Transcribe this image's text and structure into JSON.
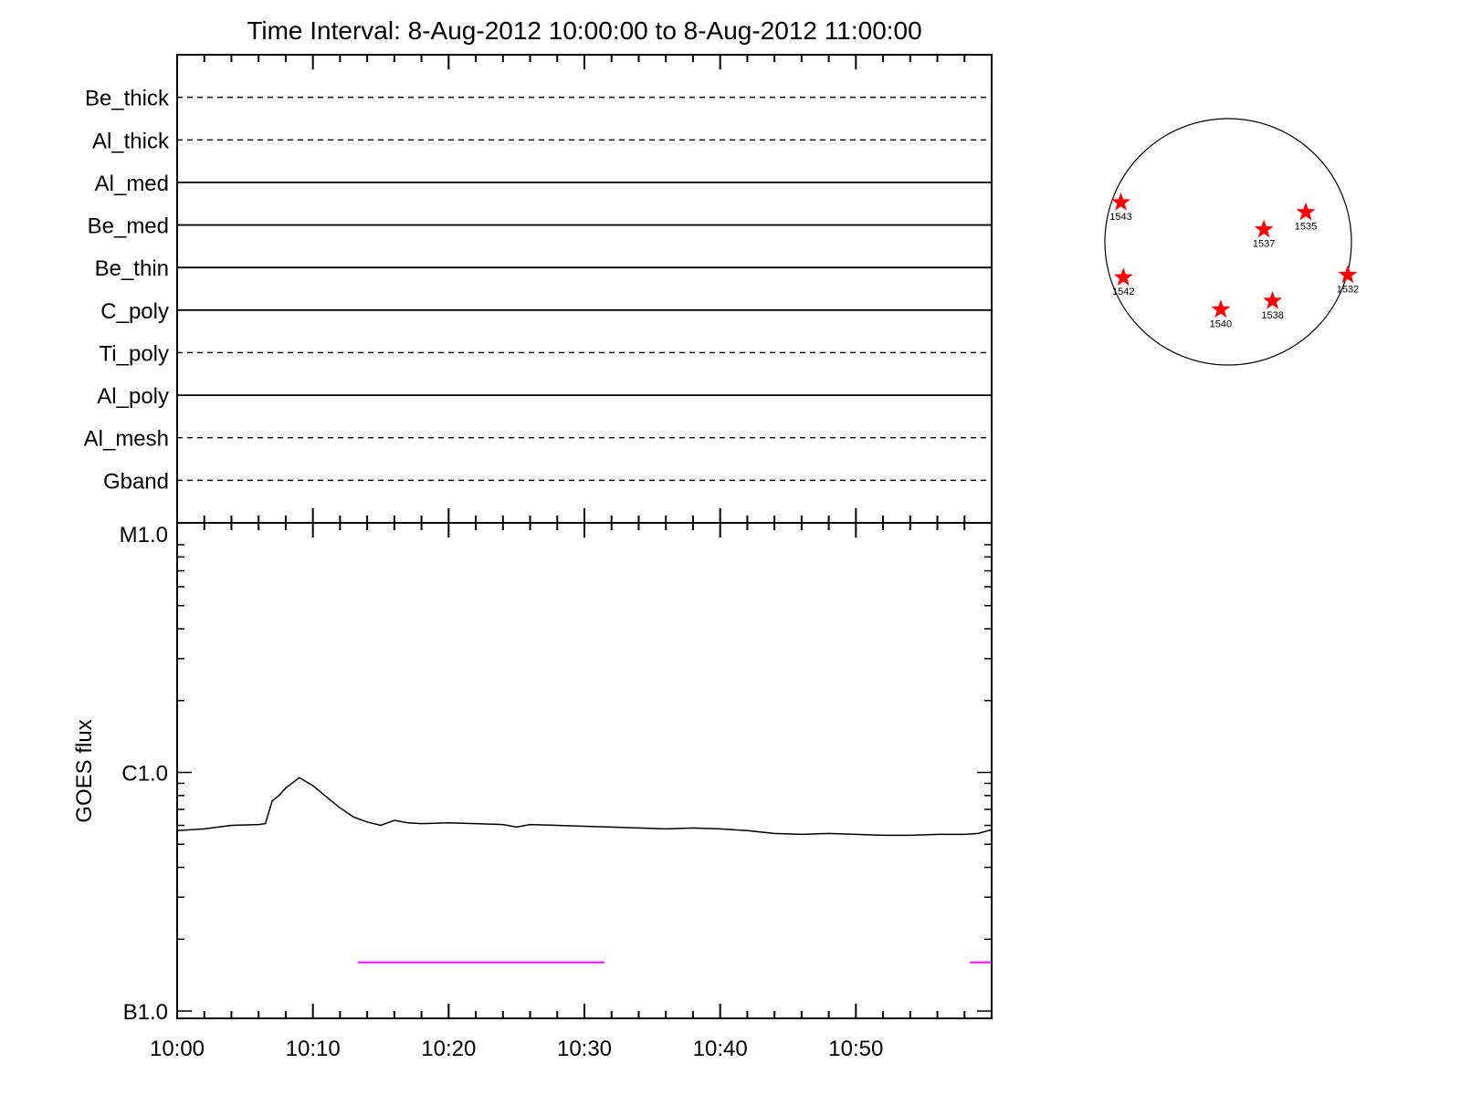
{
  "title": "Time Interval:  8-Aug-2012 10:00:00 to  8-Aug-2012 11:00:00",
  "chart_data": [
    {
      "type": "line",
      "panel": "filter-states",
      "series": [
        {
          "name": "Be_thick",
          "state": "dashed"
        },
        {
          "name": "Al_thick",
          "state": "dashed"
        },
        {
          "name": "Al_med",
          "state": "solid"
        },
        {
          "name": "Be_med",
          "state": "solid"
        },
        {
          "name": "Be_thin",
          "state": "solid"
        },
        {
          "name": "C_poly",
          "state": "solid"
        },
        {
          "name": "Ti_poly",
          "state": "dashed"
        },
        {
          "name": "Al_poly",
          "state": "solid"
        },
        {
          "name": "Al_mesh",
          "state": "dashed"
        },
        {
          "name": "Gband",
          "state": "dashed"
        }
      ],
      "xlim": [
        "10:00",
        "11:00"
      ]
    },
    {
      "type": "line",
      "panel": "goes-flux",
      "ylabel": "GOES flux",
      "yscale": "log",
      "ylim": [
        1e-07,
        1e-05
      ],
      "y_ticks": [
        {
          "label": "M1.0",
          "value": 1e-05
        },
        {
          "label": "C1.0",
          "value": 1e-06
        },
        {
          "label": "B1.0",
          "value": 1e-07
        }
      ],
      "x_ticks": [
        "10:00",
        "10:10",
        "10:20",
        "10:30",
        "10:40",
        "10:50"
      ],
      "xlim": [
        "10:00",
        "11:00"
      ],
      "series": [
        {
          "color": "#000000",
          "x": [
            "10:00",
            "10:02",
            "10:04",
            "10:06",
            "10:06.5",
            "10:07",
            "10:07.5",
            "10:08",
            "10:09",
            "10:10",
            "10:11",
            "10:12",
            "10:13",
            "10:14",
            "10:15",
            "10:16",
            "10:17",
            "10:18",
            "10:20",
            "10:22",
            "10:24",
            "10:25",
            "10:26",
            "10:28",
            "10:30",
            "10:32",
            "10:34",
            "10:36",
            "10:38",
            "10:40",
            "10:42",
            "10:44",
            "10:46",
            "10:48",
            "10:50",
            "10:52",
            "10:54",
            "10:56",
            "10:58",
            "10:59",
            "11:00"
          ],
          "y": [
            5.7e-07,
            5.8e-07,
            6e-07,
            6.05e-07,
            6.1e-07,
            7.6e-07,
            8e-07,
            8.6e-07,
            9.5e-07,
            8.8e-07,
            7.9e-07,
            7.1e-07,
            6.5e-07,
            6.2e-07,
            6e-07,
            6.3e-07,
            6.15e-07,
            6.1e-07,
            6.15e-07,
            6.1e-07,
            6.05e-07,
            5.9e-07,
            6.05e-07,
            6e-07,
            5.95e-07,
            5.9e-07,
            5.85e-07,
            5.8e-07,
            5.85e-07,
            5.8e-07,
            5.7e-07,
            5.55e-07,
            5.5e-07,
            5.55e-07,
            5.5e-07,
            5.45e-07,
            5.45e-07,
            5.5e-07,
            5.5e-07,
            5.55e-07,
            5.75e-07
          ]
        }
      ],
      "segments": [
        {
          "color": "#ff00ff",
          "x_start": "10:13.3",
          "x_end": "10:31.5",
          "y": 1.6e-07
        },
        {
          "color": "#ff00ff",
          "x_start": "10:58.4",
          "x_end": "11:00",
          "y": 1.6e-07
        }
      ]
    },
    {
      "type": "scatter",
      "panel": "solar-disk",
      "marker": "star",
      "marker_color": "#ff0000",
      "xlim": [
        -1,
        1
      ],
      "ylim": [
        -1,
        1
      ],
      "points": [
        {
          "label": "1543",
          "x": -0.87,
          "y": 0.32
        },
        {
          "label": "1535",
          "x": 0.63,
          "y": 0.24
        },
        {
          "label": "1537",
          "x": 0.29,
          "y": 0.1
        },
        {
          "label": "1542",
          "x": -0.85,
          "y": -0.29
        },
        {
          "label": "1532",
          "x": 0.97,
          "y": -0.27
        },
        {
          "label": "1540",
          "x": -0.06,
          "y": -0.55
        },
        {
          "label": "1538",
          "x": 0.36,
          "y": -0.48
        }
      ]
    }
  ]
}
